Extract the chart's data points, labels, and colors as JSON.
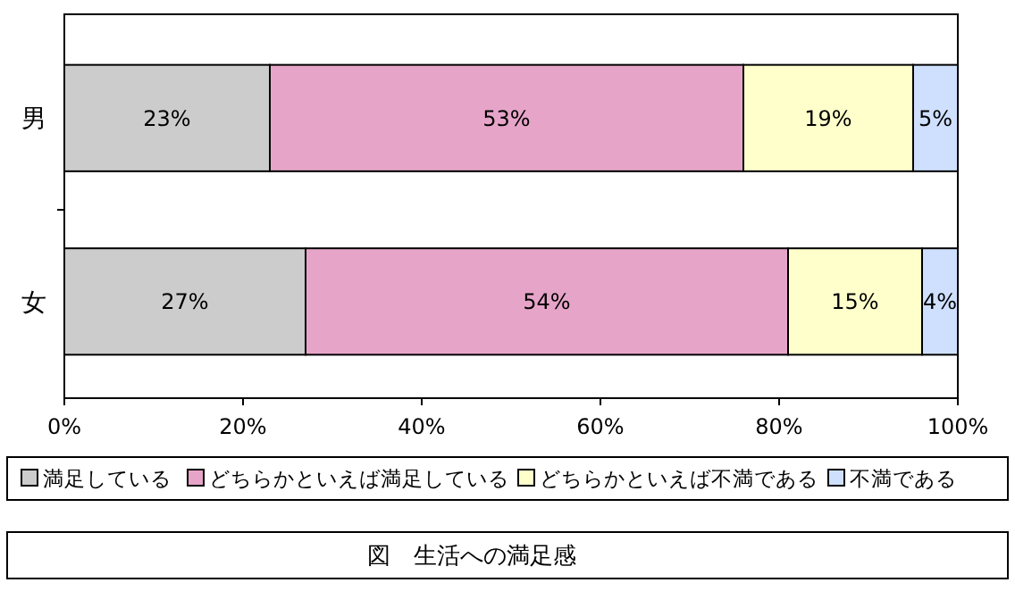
{
  "chart_data": {
    "type": "bar",
    "orientation": "horizontal",
    "stacked": true,
    "title": "図　生活への満足感",
    "categories": [
      "男",
      "女"
    ],
    "series": [
      {
        "name": "満足している",
        "color": "#cccccc",
        "values": [
          23,
          27
        ]
      },
      {
        "name": "どちらかといえば満足している",
        "color": "#e6a5c8",
        "values": [
          53,
          54
        ]
      },
      {
        "name": "どちらかといえば不満である",
        "color": "#ffffcc",
        "values": [
          19,
          15
        ]
      },
      {
        "name": "不満である",
        "color": "#cfe0ff",
        "values": [
          5,
          4
        ]
      }
    ],
    "xlim": [
      0,
      100
    ],
    "xticks": [
      {
        "value": 0,
        "label": "0%"
      },
      {
        "value": 20,
        "label": "20%"
      },
      {
        "value": 40,
        "label": "40%"
      },
      {
        "value": 60,
        "label": "60%"
      },
      {
        "value": 80,
        "label": "80%"
      },
      {
        "value": 100,
        "label": "100%"
      }
    ],
    "value_labels": [
      [
        "23%",
        "27%"
      ],
      [
        "53%",
        "54%"
      ],
      [
        "19%",
        "15%"
      ],
      [
        "5%",
        "4%"
      ]
    ],
    "grid": false,
    "legend": "bottom"
  }
}
